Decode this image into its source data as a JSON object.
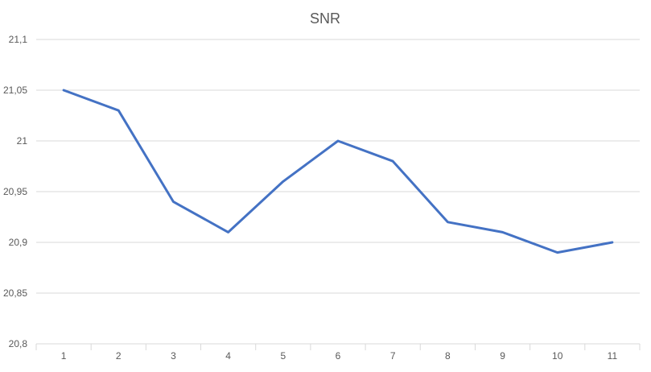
{
  "chart_data": {
    "type": "line",
    "title": "SNR",
    "xlabel": "",
    "ylabel": "",
    "categories": [
      "1",
      "2",
      "3",
      "4",
      "5",
      "6",
      "7",
      "8",
      "9",
      "10",
      "11"
    ],
    "series": [
      {
        "values": [
          21.05,
          21.03,
          20.94,
          20.91,
          20.96,
          21.0,
          20.98,
          20.92,
          20.91,
          20.89,
          20.9
        ]
      }
    ],
    "ylim": [
      20.8,
      21.1
    ],
    "yticks": [
      "20,8",
      "20,85",
      "20,9",
      "20,95",
      "21",
      "21,05",
      "21,1"
    ],
    "grid": true,
    "legend": "none",
    "colors": {
      "series": "#4472c4",
      "grid": "#d9d9d9",
      "text": "#595959"
    }
  }
}
